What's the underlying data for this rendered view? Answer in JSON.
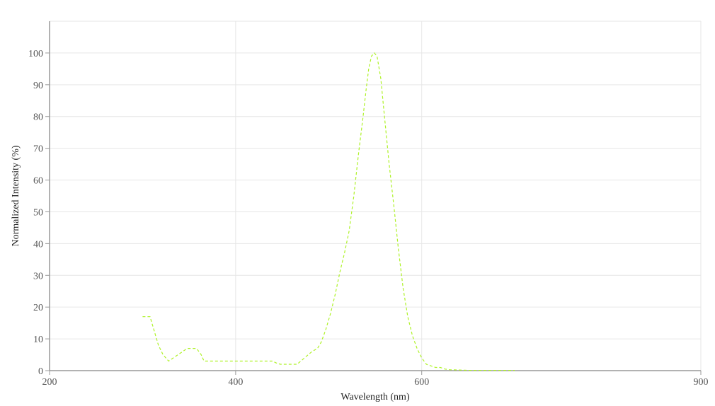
{
  "chart_data": {
    "type": "line",
    "title": "",
    "xlabel": "Wavelength (nm)",
    "ylabel": "Normalized Intensity (%)",
    "xlim": [
      200,
      900
    ],
    "ylim": [
      0,
      110
    ],
    "x_ticks": [
      200,
      400,
      600,
      900
    ],
    "y_ticks": [
      0,
      10,
      20,
      30,
      40,
      50,
      60,
      70,
      80,
      90,
      100
    ],
    "grid": true,
    "legend": "none",
    "series": [
      {
        "color": "#aef227",
        "x": [
          300,
          305,
          308,
          312,
          317,
          322,
          328,
          333,
          338,
          343,
          348,
          353,
          358,
          363,
          366,
          370,
          373,
          380,
          390,
          400,
          410,
          420,
          430,
          440,
          443,
          448,
          458,
          466,
          470,
          476,
          482,
          488,
          492,
          497,
          502,
          507,
          512,
          517,
          522,
          527,
          532,
          537,
          540,
          543,
          546,
          549,
          552,
          556,
          560,
          565,
          570,
          575,
          580,
          585,
          590,
          595,
          600,
          605,
          610,
          615,
          620,
          625,
          630,
          640,
          650,
          660,
          670,
          680,
          690,
          700
        ],
        "y": [
          17,
          17,
          17,
          13,
          8,
          5,
          3,
          4,
          5,
          6,
          7,
          7,
          7,
          5,
          3,
          3,
          3,
          3,
          3,
          3,
          3,
          3,
          3,
          3,
          2.5,
          2,
          2,
          2,
          3,
          4.5,
          6,
          7,
          9,
          13,
          18,
          24,
          31,
          37,
          44,
          55,
          68,
          80,
          88,
          95,
          99,
          100,
          99,
          92,
          80,
          65,
          52,
          38,
          26,
          17,
          11,
          7,
          4,
          2,
          1.5,
          1,
          1,
          0.5,
          0.3,
          0.2,
          0.1,
          0.1,
          0.1,
          0.1,
          0.1,
          0.1
        ]
      }
    ]
  }
}
